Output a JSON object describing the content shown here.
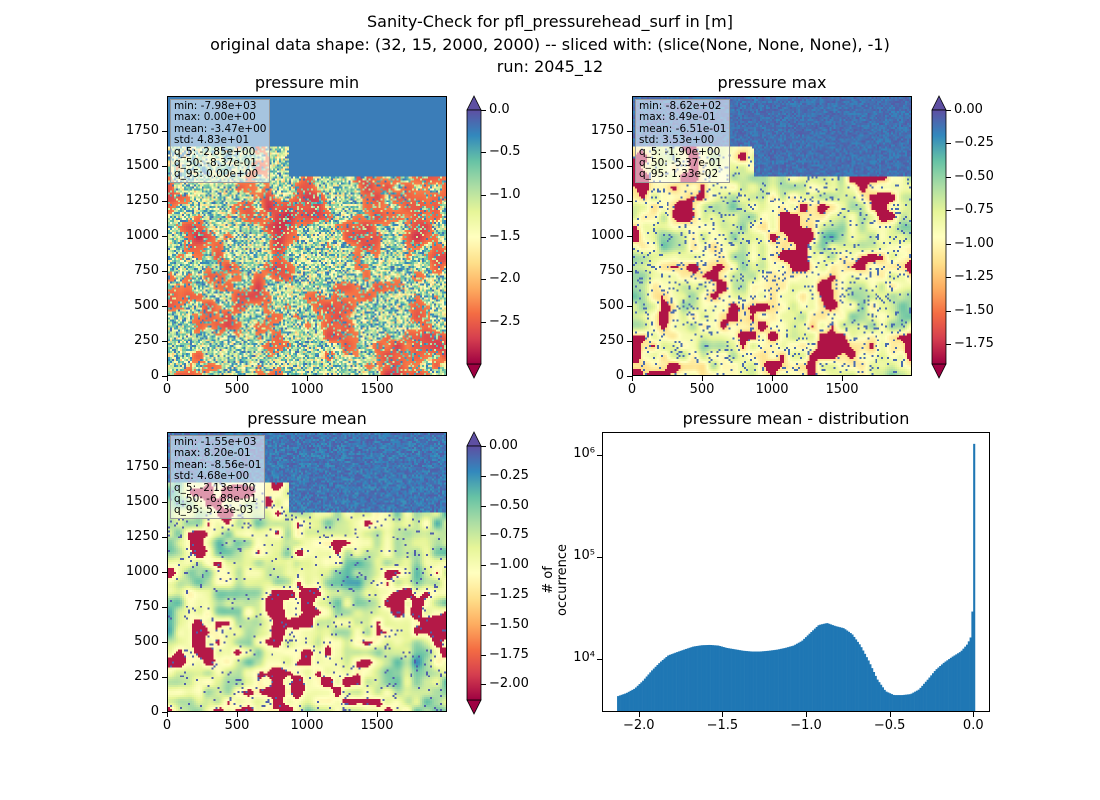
{
  "figure": {
    "title_lines": [
      "Sanity-Check for pfl_pressurehead_surf in [m]",
      "original data shape: (32, 15, 2000, 2000) -- sliced with: (slice(None, None, None), -1)",
      "run: 2045_12"
    ]
  },
  "colors": {
    "spectral": [
      "#9e0142",
      "#d53e4f",
      "#f46d43",
      "#fdae61",
      "#fee08b",
      "#ffffbf",
      "#e6f598",
      "#abdda4",
      "#66c2a5",
      "#3288bd",
      "#5e4fa2"
    ],
    "hist_bar": "#1f77b4"
  },
  "maps": [
    {
      "id": "min",
      "title": "pressure min",
      "stats": [
        "min: -7.98e+03",
        "max: 0.00e+00",
        "mean: -3.47e+00",
        "std: 4.83e+01",
        "q_5: -2.85e+00",
        "q_50: -8.37e-01",
        "q_95: 0.00e+00"
      ],
      "xticks": [
        "0",
        "500",
        "1000",
        "1500"
      ],
      "yticks": [
        "0",
        "250",
        "500",
        "750",
        "1000",
        "1250",
        "1500",
        "1750"
      ],
      "colorbar": {
        "vmin": -3.0,
        "vmax": 0.0,
        "ticks": [
          "0.0",
          "−0.5",
          "−1.0",
          "−1.5",
          "−2.0",
          "−2.5"
        ],
        "tick_values": [
          0.0,
          -0.5,
          -1.0,
          -1.5,
          -2.0,
          -2.5
        ],
        "extend": "both"
      }
    },
    {
      "id": "max",
      "title": "pressure max",
      "stats": [
        "min: -8.62e+02",
        "max: 8.49e-01",
        "mean: -6.51e-01",
        "std: 3.53e+00",
        "q_5: -1.90e+00",
        "q_50: -5.37e-01",
        "q_95: 1.33e-02"
      ],
      "xticks": [
        "0",
        "500",
        "1000",
        "1500"
      ],
      "yticks": [
        "0",
        "250",
        "500",
        "750",
        "1000",
        "1250",
        "1500",
        "1750"
      ],
      "colorbar": {
        "vmin": -1.9,
        "vmax": 0.0,
        "ticks": [
          "0.00",
          "−0.25",
          "−0.50",
          "−0.75",
          "−1.00",
          "−1.25",
          "−1.50",
          "−1.75"
        ],
        "tick_values": [
          0.0,
          -0.25,
          -0.5,
          -0.75,
          -1.0,
          -1.25,
          -1.5,
          -1.75
        ],
        "extend": "both"
      }
    },
    {
      "id": "mean",
      "title": "pressure mean",
      "stats": [
        "min: -1.55e+03",
        "max: 8.20e-01",
        "mean: -8.56e-01",
        "std: 4.68e+00",
        "q_5: -2.13e+00",
        "q_50: -6.88e-01",
        "q_95: 5.23e-03"
      ],
      "xticks": [
        "0",
        "500",
        "1000",
        "1500"
      ],
      "yticks": [
        "0",
        "250",
        "500",
        "750",
        "1000",
        "1250",
        "1500",
        "1750"
      ],
      "colorbar": {
        "vmin": -2.13,
        "vmax": 0.0,
        "ticks": [
          "0.00",
          "−0.25",
          "−0.50",
          "−0.75",
          "−1.00",
          "−1.25",
          "−1.50",
          "−1.75",
          "−2.00"
        ],
        "tick_values": [
          0.0,
          -0.25,
          -0.5,
          -0.75,
          -1.0,
          -1.25,
          -1.5,
          -1.75,
          -2.0
        ],
        "extend": "both"
      }
    }
  ],
  "chart_data": {
    "type": "bar",
    "title": "pressure mean - distribution",
    "xlabel": "",
    "ylabel": "# of occurrence",
    "yscale": "log",
    "xlim": [
      -2.22,
      0.1
    ],
    "ylim": [
      3000,
      1700000
    ],
    "xticks": [
      -2.0,
      -1.5,
      -1.0,
      -0.5,
      0.0
    ],
    "xtick_labels": [
      "−2.0",
      "−1.5",
      "−1.0",
      "−0.5",
      "0.0"
    ],
    "yticks": [
      10000,
      100000,
      1000000
    ],
    "ytick_labels": [
      "10⁴",
      "10⁵",
      "10⁶"
    ],
    "bin_width": 0.0107,
    "x": [
      -2.13,
      -2.08,
      -2.03,
      -1.98,
      -1.93,
      -1.88,
      -1.83,
      -1.78,
      -1.73,
      -1.68,
      -1.63,
      -1.58,
      -1.53,
      -1.48,
      -1.43,
      -1.38,
      -1.33,
      -1.28,
      -1.23,
      -1.18,
      -1.13,
      -1.08,
      -1.03,
      -0.98,
      -0.93,
      -0.88,
      -0.83,
      -0.78,
      -0.73,
      -0.68,
      -0.63,
      -0.58,
      -0.53,
      -0.48,
      -0.43,
      -0.38,
      -0.33,
      -0.28,
      -0.23,
      -0.18,
      -0.13,
      -0.08,
      -0.04,
      -0.02,
      -0.01,
      0.0
    ],
    "values": [
      4300,
      4600,
      5100,
      6100,
      7600,
      9200,
      10800,
      11600,
      12400,
      13200,
      13600,
      13700,
      13500,
      12800,
      12400,
      12000,
      11800,
      11800,
      12000,
      12300,
      12800,
      13500,
      15000,
      18000,
      21500,
      22500,
      21000,
      20000,
      17500,
      13500,
      9500,
      6300,
      4800,
      4400,
      4400,
      4500,
      5000,
      6200,
      7800,
      9200,
      10500,
      11800,
      14000,
      16500,
      32000,
      1300000
    ]
  }
}
